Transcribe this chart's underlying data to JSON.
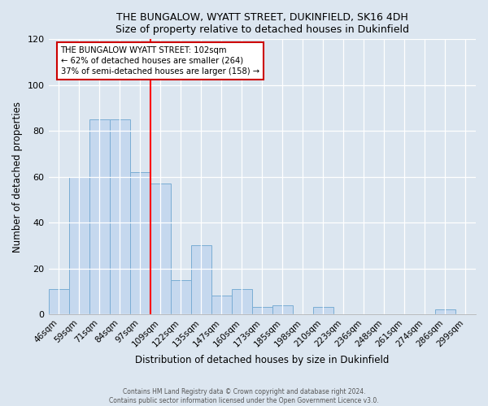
{
  "title": "THE BUNGALOW, WYATT STREET, DUKINFIELD, SK16 4DH",
  "subtitle": "Size of property relative to detached houses in Dukinfield",
  "xlabel": "Distribution of detached houses by size in Dukinfield",
  "ylabel": "Number of detached properties",
  "bar_labels": [
    "46sqm",
    "59sqm",
    "71sqm",
    "84sqm",
    "97sqm",
    "109sqm",
    "122sqm",
    "135sqm",
    "147sqm",
    "160sqm",
    "173sqm",
    "185sqm",
    "198sqm",
    "210sqm",
    "223sqm",
    "236sqm",
    "248sqm",
    "261sqm",
    "274sqm",
    "286sqm",
    "299sqm"
  ],
  "bar_values": [
    11,
    60,
    85,
    85,
    62,
    57,
    15,
    30,
    8,
    11,
    3,
    4,
    0,
    3,
    0,
    0,
    0,
    0,
    0,
    2,
    0
  ],
  "bar_color": "#c5d8ee",
  "bar_edge_color": "#7aadd4",
  "ylim": [
    0,
    120
  ],
  "yticks": [
    0,
    20,
    40,
    60,
    80,
    100,
    120
  ],
  "red_line_x": 4.5,
  "annotation_text": "THE BUNGALOW WYATT STREET: 102sqm\n← 62% of detached houses are smaller (264)\n37% of semi-detached houses are larger (158) →",
  "annotation_box_color": "#ffffff",
  "annotation_box_edge": "#cc0000",
  "footer_line1": "Contains HM Land Registry data © Crown copyright and database right 2024.",
  "footer_line2": "Contains public sector information licensed under the Open Government Licence v3.0.",
  "background_color": "#dce6f0",
  "plot_bg_color": "#dce6f0"
}
